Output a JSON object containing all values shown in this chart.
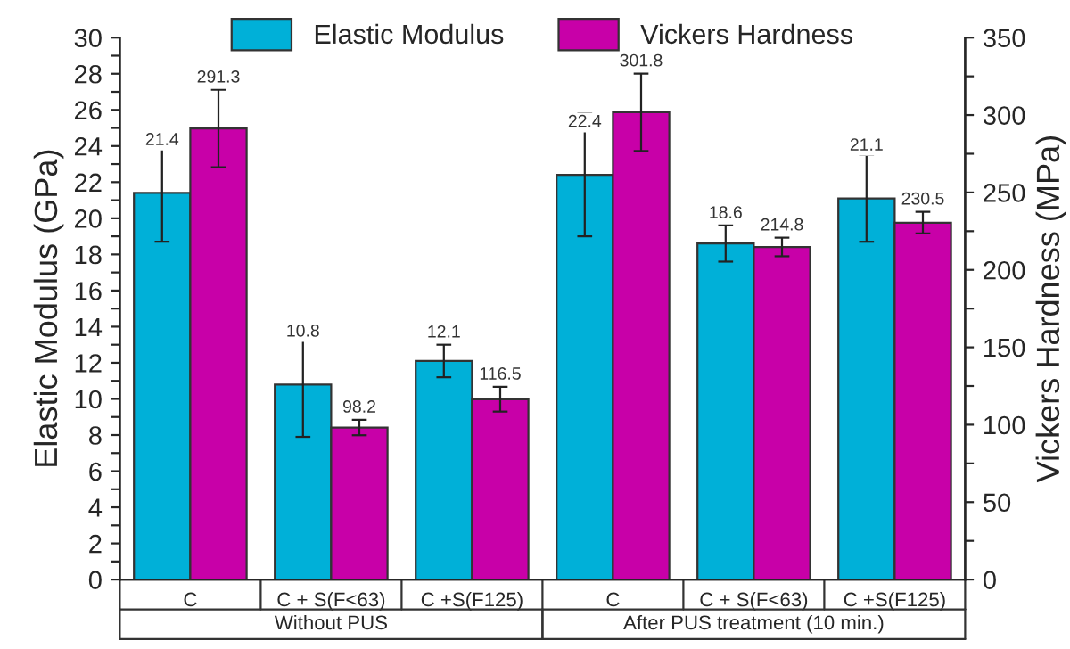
{
  "chart_data": {
    "type": "bar",
    "categories": [
      "C",
      "C + S(F<63)",
      "C +S(F125)",
      "C",
      "C + S(F<63)",
      "C +S(F125)"
    ],
    "series": [
      {
        "name": "Elastic Modulus",
        "color": "#00b0d8",
        "values": [
          21.4,
          10.8,
          12.1,
          22.4,
          18.6,
          21.1
        ],
        "errors": [
          2.7,
          2.9,
          0.9,
          3.4,
          1.0,
          2.4
        ]
      },
      {
        "name": "Vickers Hardness",
        "color": "#c800a8",
        "axis": "y2",
        "values": [
          291.3,
          98.2,
          116.5,
          301.8,
          214.8,
          230.5
        ],
        "errors": [
          25,
          5,
          8,
          25,
          6,
          7
        ]
      }
    ],
    "ylabel": "Elastic Modulus (GPa)",
    "y2label": "Vickers Hardness (MPa)",
    "ylim": [
      0,
      30
    ],
    "yticks": [
      0,
      {
        "value": 1,
        "label": null
      },
      2,
      {
        "value": 3,
        "label": null
      },
      4,
      {
        "value": 5,
        "label": null
      },
      6,
      {
        "value": 7,
        "label": null
      },
      8,
      {
        "value": 9,
        "label": null
      },
      10,
      {
        "value": 11,
        "label": null
      },
      12,
      {
        "value": 13,
        "label": null
      },
      14,
      {
        "value": 15,
        "label": null
      },
      16,
      {
        "value": 17,
        "label": null
      },
      18,
      {
        "value": 19,
        "label": null
      },
      20,
      {
        "value": 21,
        "label": null
      },
      22,
      {
        "value": 23,
        "label": null
      },
      24,
      {
        "value": 25,
        "label": null
      },
      26,
      {
        "value": 27,
        "label": null
      },
      28,
      {
        "value": 29,
        "label": null
      },
      30
    ],
    "y2lim": [
      0,
      350
    ],
    "y2ticks": [
      0,
      {
        "value": 25,
        "label": null
      },
      50,
      {
        "value": 75,
        "label": null
      },
      100,
      {
        "value": 125,
        "label": null
      },
      150,
      {
        "value": 175,
        "label": null
      },
      200,
      {
        "value": 225,
        "label": null
      },
      250,
      {
        "value": 275,
        "label": null
      },
      300,
      {
        "value": 325,
        "label": null
      },
      350
    ],
    "annotations": [
      "Without PUS",
      "After PUS treatment (10 min.)"
    ],
    "data_labels": true,
    "legend": "top",
    "grid": false
  }
}
